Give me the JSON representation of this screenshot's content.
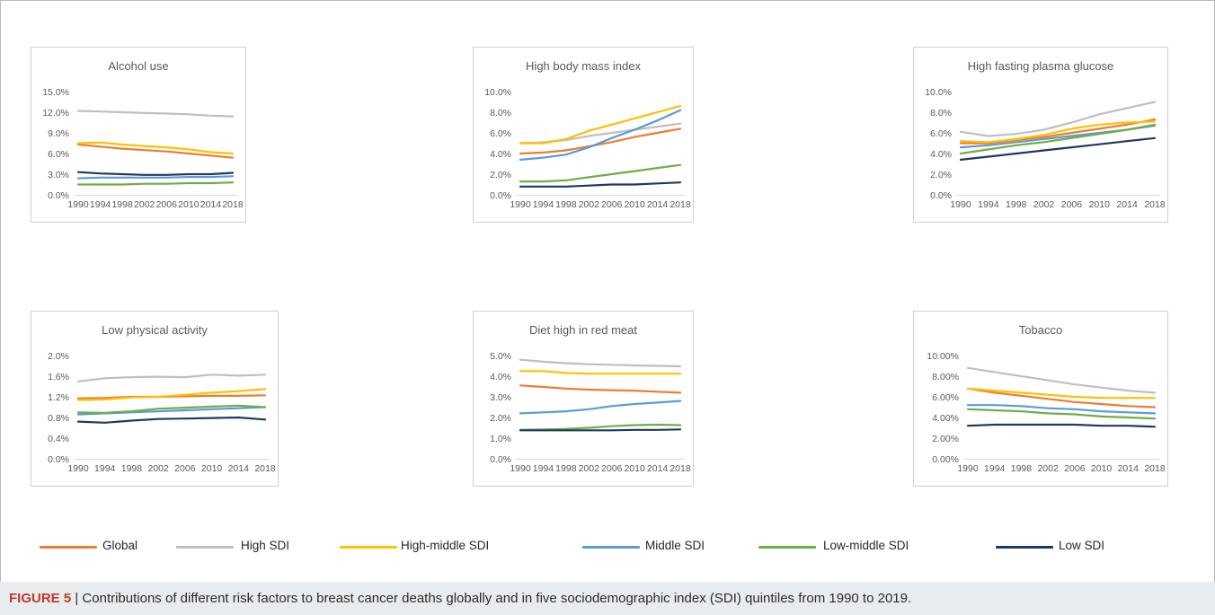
{
  "caption": {
    "label": "FIGURE 5",
    "separator": " | ",
    "text": "Contributions of different risk factors to breast cancer deaths globally and in five sociodemographic index (SDI) quintiles from 1990 to 2019."
  },
  "legend": [
    {
      "name": "Global",
      "color": "#ed7d31"
    },
    {
      "name": "High SDI",
      "color": "#bfbfbf"
    },
    {
      "name": "High-middle SDI",
      "color": "#ffc000"
    },
    {
      "name": "Middle SDI",
      "color": "#5b9bd5"
    },
    {
      "name": "Low-middle SDI",
      "color": "#70ad47"
    },
    {
      "name": "Low SDI",
      "color": "#203864"
    }
  ],
  "chart_data": [
    {
      "type": "line",
      "title": "Alcohol use",
      "x": [
        1990,
        1994,
        1998,
        2002,
        2006,
        2010,
        2014,
        2018
      ],
      "x_tick_labels": [
        "1990",
        "1994",
        "1998",
        "2002",
        "2006",
        "2010",
        "2014",
        "2018"
      ],
      "y_ticks": [
        "0.0%",
        "3.0%",
        "6.0%",
        "9.0%",
        "12.0%",
        "15.0%"
      ],
      "ylim": [
        0,
        15
      ],
      "series": [
        {
          "name": "Global",
          "values": [
            7.3,
            7.0,
            6.7,
            6.5,
            6.3,
            6.0,
            5.7,
            5.4
          ]
        },
        {
          "name": "High SDI",
          "values": [
            12.2,
            12.1,
            12.0,
            11.9,
            11.8,
            11.7,
            11.5,
            11.4
          ]
        },
        {
          "name": "High-middle SDI",
          "values": [
            7.5,
            7.6,
            7.3,
            7.1,
            6.9,
            6.6,
            6.2,
            6.0
          ]
        },
        {
          "name": "Middle SDI",
          "values": [
            2.4,
            2.5,
            2.5,
            2.5,
            2.5,
            2.6,
            2.6,
            2.7
          ]
        },
        {
          "name": "Low-middle SDI",
          "values": [
            1.5,
            1.5,
            1.5,
            1.6,
            1.6,
            1.7,
            1.7,
            1.8
          ]
        },
        {
          "name": "Low SDI",
          "values": [
            3.3,
            3.1,
            3.0,
            2.9,
            2.9,
            3.0,
            3.0,
            3.2
          ]
        }
      ]
    },
    {
      "type": "line",
      "title": "High body mass index",
      "x": [
        1990,
        1994,
        1998,
        2002,
        2006,
        2010,
        2014,
        2018
      ],
      "x_tick_labels": [
        "1990",
        "1994",
        "1998",
        "2002",
        "2006",
        "2010",
        "2014",
        "2018"
      ],
      "y_ticks": [
        "0.0%",
        "2.0%",
        "4.0%",
        "6.0%",
        "8.0%",
        "10.0%"
      ],
      "ylim": [
        0,
        10
      ],
      "series": [
        {
          "name": "Global",
          "values": [
            4.0,
            4.1,
            4.3,
            4.7,
            5.1,
            5.6,
            6.0,
            6.4
          ]
        },
        {
          "name": "High SDI",
          "values": [
            5.0,
            5.1,
            5.3,
            5.7,
            6.0,
            6.3,
            6.6,
            6.9
          ]
        },
        {
          "name": "High-middle SDI",
          "values": [
            5.0,
            5.0,
            5.4,
            6.2,
            6.8,
            7.4,
            8.0,
            8.6
          ]
        },
        {
          "name": "Middle SDI",
          "values": [
            3.4,
            3.6,
            3.9,
            4.6,
            5.5,
            6.3,
            7.2,
            8.2
          ]
        },
        {
          "name": "Low-middle SDI",
          "values": [
            1.3,
            1.3,
            1.4,
            1.7,
            2.0,
            2.3,
            2.6,
            2.9
          ]
        },
        {
          "name": "Low SDI",
          "values": [
            0.8,
            0.8,
            0.8,
            0.9,
            1.0,
            1.0,
            1.1,
            1.2
          ]
        }
      ]
    },
    {
      "type": "line",
      "title": "High fasting plasma glucose",
      "x": [
        1990,
        1994,
        1998,
        2002,
        2006,
        2010,
        2014,
        2018
      ],
      "x_tick_labels": [
        "1990",
        "1994",
        "1998",
        "2002",
        "2006",
        "2010",
        "2014",
        "2018"
      ],
      "y_ticks": [
        "0.0%",
        "2.0%",
        "4.0%",
        "6.0%",
        "8.0%",
        "10.0%"
      ],
      "ylim": [
        0,
        10
      ],
      "series": [
        {
          "name": "Global",
          "values": [
            5.0,
            5.0,
            5.3,
            5.6,
            6.0,
            6.4,
            6.8,
            7.3
          ]
        },
        {
          "name": "High SDI",
          "values": [
            6.1,
            5.7,
            5.9,
            6.3,
            7.0,
            7.8,
            8.4,
            9.0
          ]
        },
        {
          "name": "High-middle SDI",
          "values": [
            5.2,
            5.1,
            5.4,
            5.8,
            6.4,
            6.8,
            7.0,
            7.1
          ]
        },
        {
          "name": "Middle SDI",
          "values": [
            4.6,
            4.8,
            5.1,
            5.4,
            5.7,
            6.0,
            6.3,
            6.7
          ]
        },
        {
          "name": "Low-middle SDI",
          "values": [
            4.0,
            4.4,
            4.8,
            5.1,
            5.5,
            5.9,
            6.3,
            6.8
          ]
        },
        {
          "name": "Low SDI",
          "values": [
            3.4,
            3.7,
            4.0,
            4.3,
            4.6,
            4.9,
            5.2,
            5.5
          ]
        }
      ]
    },
    {
      "type": "line",
      "title": "Low physical activity",
      "x": [
        1990,
        1994,
        1998,
        2002,
        2006,
        2010,
        2014,
        2018
      ],
      "x_tick_labels": [
        "1990",
        "1994",
        "1998",
        "2002",
        "2006",
        "2010",
        "2014",
        "2018"
      ],
      "y_ticks": [
        "0.0%",
        "0.4%",
        "0.8%",
        "1.2%",
        "1.6%",
        "2.0%"
      ],
      "ylim": [
        0,
        2.0
      ],
      "series": [
        {
          "name": "Global",
          "values": [
            1.17,
            1.18,
            1.2,
            1.2,
            1.21,
            1.22,
            1.22,
            1.23
          ]
        },
        {
          "name": "High SDI",
          "values": [
            1.5,
            1.56,
            1.58,
            1.59,
            1.58,
            1.63,
            1.61,
            1.63
          ]
        },
        {
          "name": "High-middle SDI",
          "values": [
            1.14,
            1.15,
            1.19,
            1.2,
            1.24,
            1.28,
            1.31,
            1.35
          ]
        },
        {
          "name": "Middle SDI",
          "values": [
            0.86,
            0.88,
            0.9,
            0.92,
            0.94,
            0.96,
            0.98,
            1.0
          ]
        },
        {
          "name": "Low-middle SDI",
          "values": [
            0.9,
            0.89,
            0.92,
            0.97,
            0.99,
            1.01,
            1.03,
            1.0
          ]
        },
        {
          "name": "Low SDI",
          "values": [
            0.72,
            0.7,
            0.74,
            0.77,
            0.78,
            0.79,
            0.8,
            0.76
          ]
        }
      ]
    },
    {
      "type": "line",
      "title": "Diet high in red meat",
      "x": [
        1990,
        1994,
        1998,
        2002,
        2006,
        2010,
        2014,
        2018
      ],
      "x_tick_labels": [
        "1990",
        "1994",
        "1998",
        "2002",
        "2006",
        "2010",
        "2014",
        "2018"
      ],
      "y_ticks": [
        "0.0%",
        "1.0%",
        "2.0%",
        "3.0%",
        "4.0%",
        "5.0%"
      ],
      "ylim": [
        0,
        5.0
      ],
      "series": [
        {
          "name": "Global",
          "values": [
            3.55,
            3.48,
            3.4,
            3.35,
            3.32,
            3.3,
            3.25,
            3.2
          ]
        },
        {
          "name": "High SDI",
          "values": [
            4.8,
            4.7,
            4.63,
            4.58,
            4.55,
            4.52,
            4.5,
            4.48
          ]
        },
        {
          "name": "High-middle SDI",
          "values": [
            4.25,
            4.25,
            4.15,
            4.12,
            4.12,
            4.12,
            4.12,
            4.12
          ]
        },
        {
          "name": "Middle SDI",
          "values": [
            2.2,
            2.25,
            2.3,
            2.4,
            2.55,
            2.65,
            2.72,
            2.8
          ]
        },
        {
          "name": "Low-middle SDI",
          "values": [
            1.4,
            1.42,
            1.45,
            1.5,
            1.58,
            1.63,
            1.65,
            1.63
          ]
        },
        {
          "name": "Low SDI",
          "values": [
            1.38,
            1.38,
            1.38,
            1.38,
            1.38,
            1.4,
            1.4,
            1.42
          ]
        }
      ]
    },
    {
      "type": "line",
      "title": "Tobacco",
      "x": [
        1990,
        1994,
        1998,
        2002,
        2006,
        2010,
        2014,
        2018
      ],
      "x_tick_labels": [
        "1990",
        "1994",
        "1998",
        "2002",
        "2006",
        "2010",
        "2014",
        "2018"
      ],
      "y_ticks": [
        "0.00%",
        "2.00%",
        "4.00%",
        "6.00%",
        "8.00%",
        "10.00%"
      ],
      "ylim": [
        0,
        10
      ],
      "series": [
        {
          "name": "Global",
          "values": [
            6.8,
            6.4,
            6.1,
            5.8,
            5.5,
            5.3,
            5.1,
            5.0
          ]
        },
        {
          "name": "High SDI",
          "values": [
            8.8,
            8.4,
            8.0,
            7.6,
            7.2,
            6.9,
            6.6,
            6.4
          ]
        },
        {
          "name": "High-middle SDI",
          "values": [
            6.8,
            6.6,
            6.4,
            6.2,
            6.0,
            5.9,
            5.9,
            5.9
          ]
        },
        {
          "name": "Middle SDI",
          "values": [
            5.2,
            5.2,
            5.1,
            4.9,
            4.8,
            4.6,
            4.5,
            4.4
          ]
        },
        {
          "name": "Low-middle SDI",
          "values": [
            4.8,
            4.7,
            4.6,
            4.4,
            4.3,
            4.1,
            4.0,
            3.9
          ]
        },
        {
          "name": "Low SDI",
          "values": [
            3.2,
            3.3,
            3.3,
            3.3,
            3.3,
            3.2,
            3.2,
            3.1
          ]
        }
      ]
    }
  ]
}
